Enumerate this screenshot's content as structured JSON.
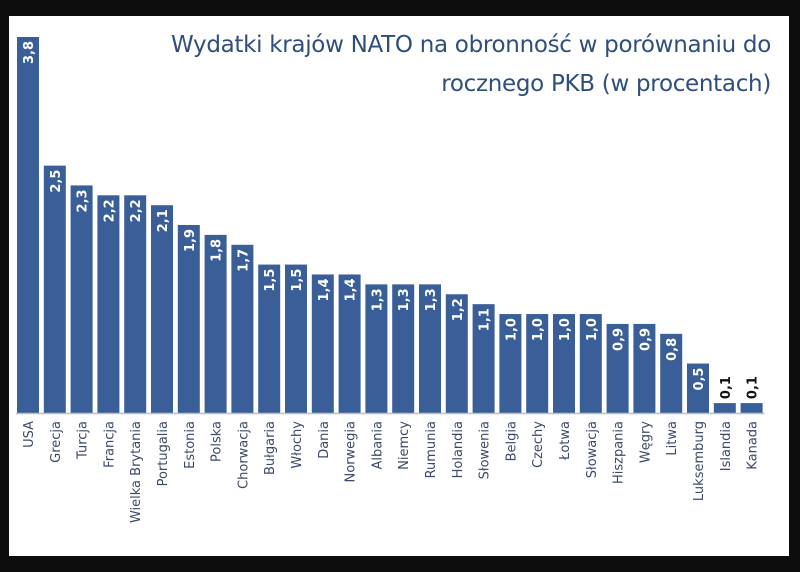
{
  "chart_data": {
    "type": "bar",
    "title_lines": [
      "Wydatki krajów NATO na obronność w porównaniu do",
      "rocznego PKB (w procentach)"
    ],
    "categories": [
      "USA",
      "Grecja",
      "Turcja",
      "Francja",
      "Wielka Brytania",
      "Portugalia",
      "Estonia",
      "Polska",
      "Chorwacja",
      "Bułgaria",
      "Włochy",
      "Dania",
      "Norwegia",
      "Albania",
      "Niemcy",
      "Rumunia",
      "Holandia",
      "Słowenia",
      "Belgia",
      "Czechy",
      "Łotwa",
      "Słowacja",
      "Hiszpania",
      "Węgry",
      "Litwa",
      "Luksemburg",
      "Islandia",
      "Kanada"
    ],
    "values": [
      3.8,
      2.5,
      2.3,
      2.2,
      2.2,
      2.1,
      1.9,
      1.8,
      1.7,
      1.5,
      1.5,
      1.4,
      1.4,
      1.3,
      1.3,
      1.3,
      1.2,
      1.1,
      1.0,
      1.0,
      1.0,
      1.0,
      0.9,
      0.9,
      0.8,
      0.5,
      0.1,
      0.1
    ],
    "value_labels": [
      "3,8",
      "2,5",
      "2,3",
      "2,2",
      "2,2",
      "2,1",
      "1,9",
      "1,8",
      "1,7",
      "1,5",
      "1,5",
      "1,4",
      "1,4",
      "1,3",
      "1,3",
      "1,3",
      "1,2",
      "1,1",
      "1,0",
      "1,0",
      "1,0",
      "1,0",
      "0,9",
      "0,9",
      "0,8",
      "0,5",
      "0,1",
      "0,1"
    ],
    "xlabel": "",
    "ylabel": "",
    "ylim": [
      0,
      3.8
    ],
    "grid": false,
    "colors": {
      "bar": "#3a5e97",
      "title": "#2f4d7d",
      "axis_label": "#3b4a68",
      "baseline": "#b9c0cc"
    }
  }
}
